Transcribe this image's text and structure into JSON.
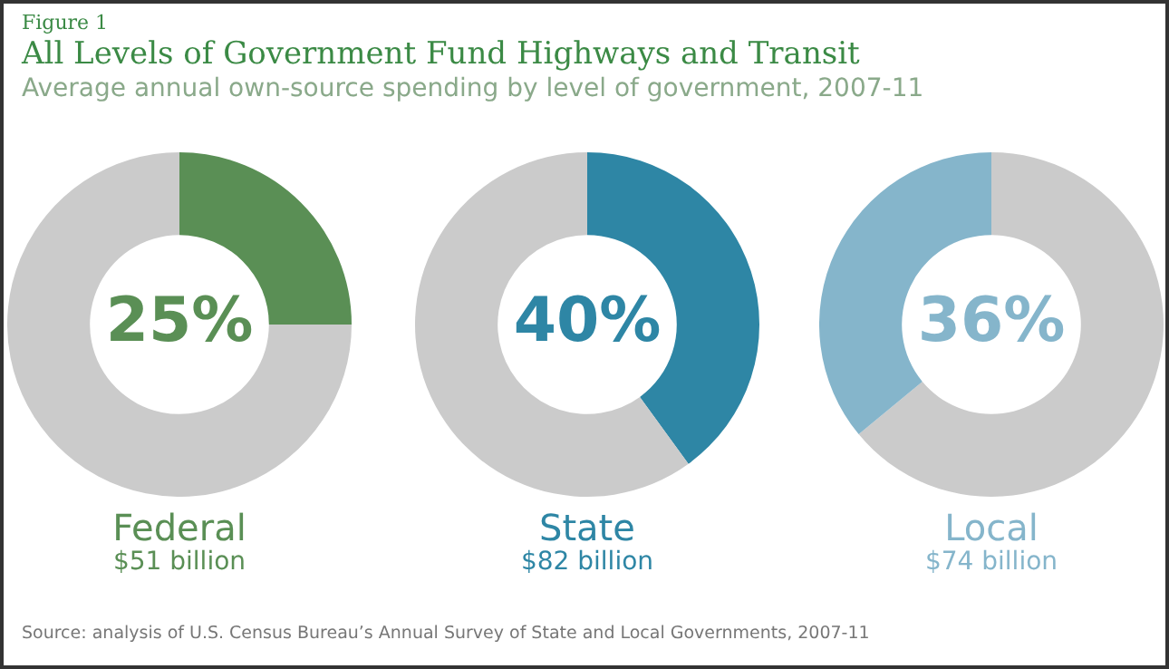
{
  "chart_data": [
    {
      "type": "other",
      "title": "All Levels of Government Fund Highways and Transit",
      "subtitle": "Average annual own-source spending by level of government, 2007-11",
      "annotations": [
        "Figure 1",
        "Source: analysis of U.S. Census Bureau’s Annual Survey of State and Local Governments, 2007-11"
      ]
    },
    {
      "type": "donut",
      "title": "Federal",
      "subtitle": "$51 billion",
      "categories": [
        null,
        null
      ],
      "values": [
        25,
        75
      ],
      "colors": [
        "#5a8f55",
        "#cbcbcb"
      ],
      "value_labels": [
        "25%",
        null
      ]
    },
    {
      "type": "donut",
      "title": "State",
      "subtitle": "$82 billion",
      "categories": [
        null,
        null
      ],
      "values": [
        40,
        60
      ],
      "colors": [
        "#2e86a5",
        "#cbcbcb"
      ],
      "value_labels": [
        "40%",
        null
      ]
    },
    {
      "type": "donut",
      "title": "Local",
      "subtitle": "$74 billion",
      "categories": [
        null,
        null
      ],
      "values": [
        64,
        36
      ],
      "colors": [
        "#cbcbcb",
        "#85b5cb"
      ],
      "value_labels": [
        null,
        "36%"
      ]
    }
  ]
}
